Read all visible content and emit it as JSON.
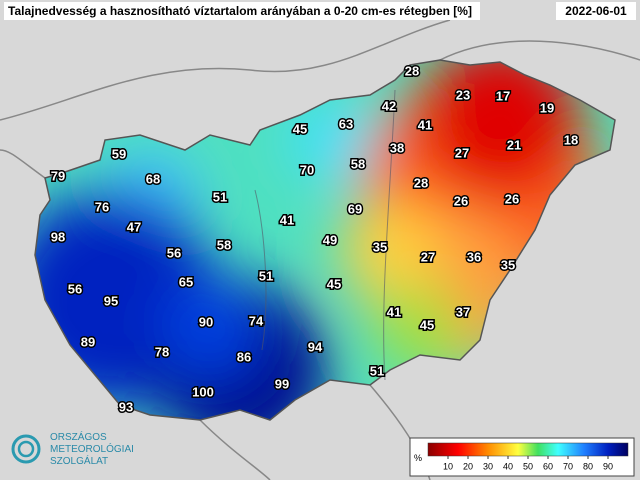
{
  "title": "Talajnedvesség a hasznosítható víztartalom arányában a 0-20 cm-es rétegben [%]",
  "date": "2022-06-01",
  "logo": [
    "ORSZÁGOS",
    "METEOROLÓGIAI",
    "SZOLGÁLAT"
  ],
  "legend": {
    "unit": "%",
    "ticks": [
      10,
      20,
      30,
      40,
      50,
      60,
      70,
      80,
      90
    ]
  },
  "stations": [
    28,
    23,
    17,
    19,
    42,
    63,
    45,
    41,
    21,
    18,
    59,
    38,
    58,
    27,
    79,
    68,
    70,
    28,
    51,
    76,
    26,
    26,
    69,
    47,
    41,
    98,
    49,
    58,
    35,
    56,
    27,
    36,
    35,
    51,
    65,
    45,
    56,
    95,
    41,
    37,
    45,
    90,
    74,
    89,
    94,
    78,
    86,
    51,
    99,
    100,
    93
  ]
}
